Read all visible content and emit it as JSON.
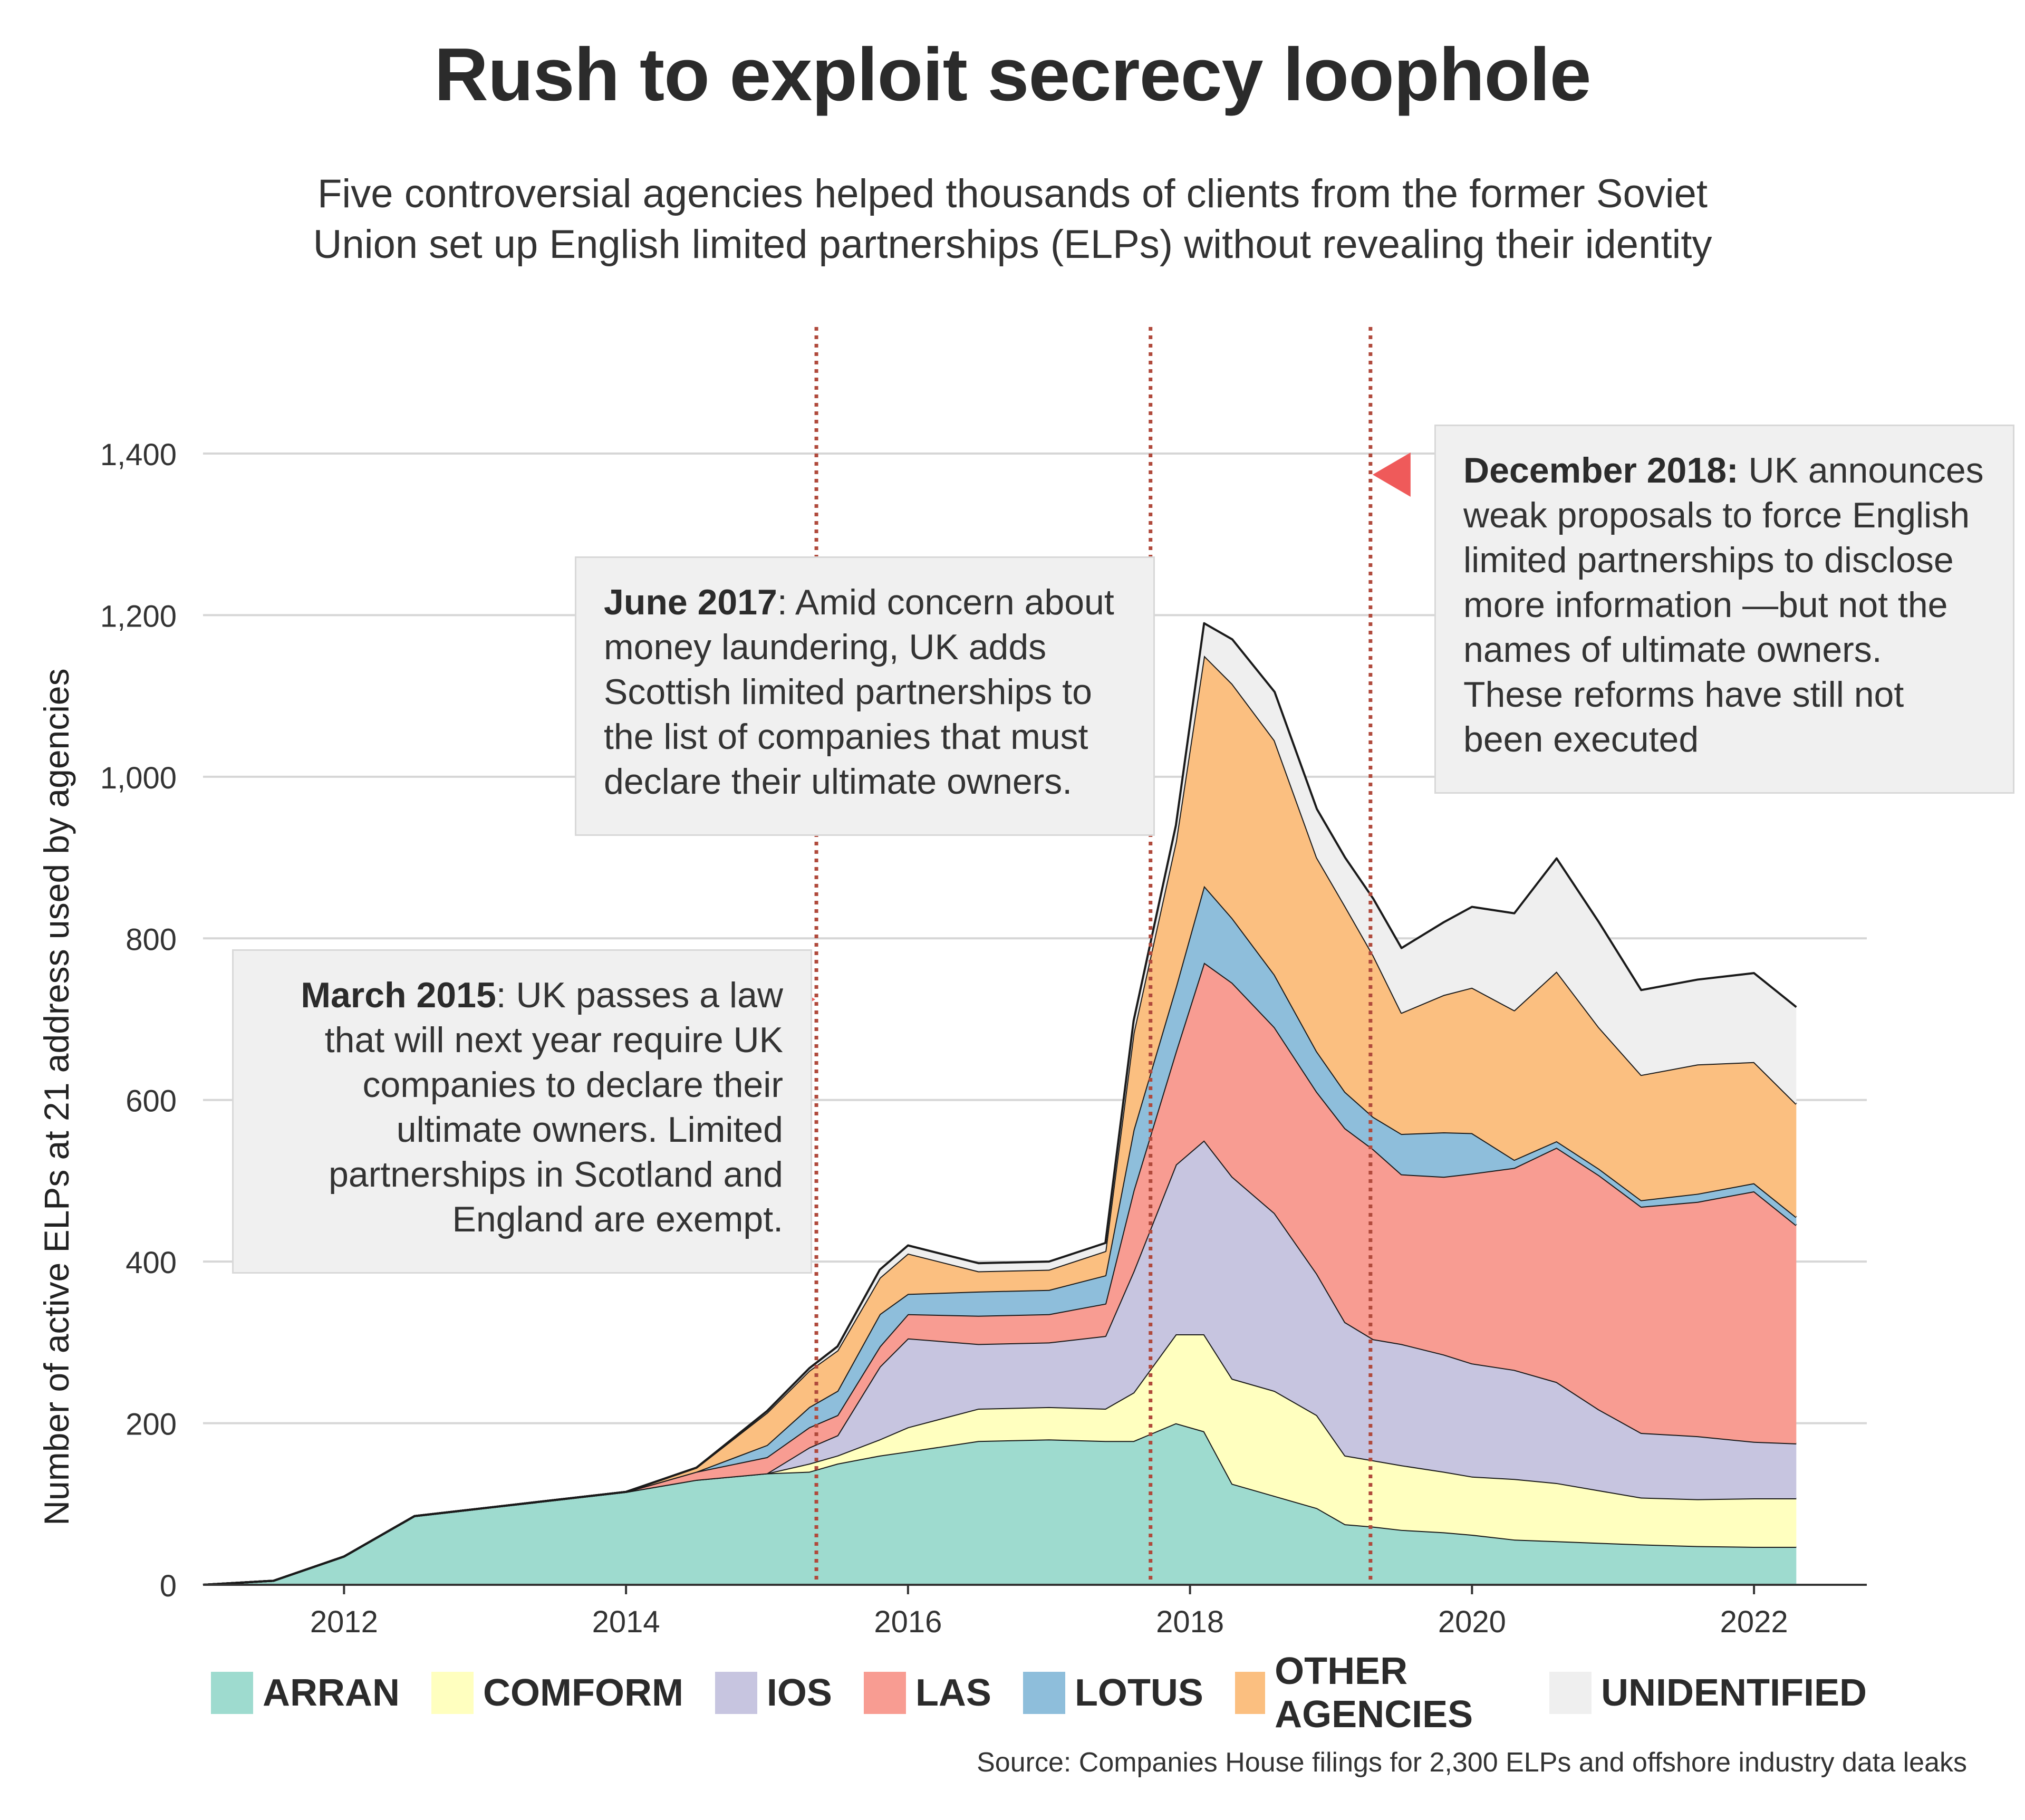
{
  "title": "Rush to exploit secrecy loophole",
  "subtitle": {
    "line1": "Five controversial agencies helped thousands of clients from the former Soviet",
    "line2": "Union set up English limited partnerships (ELPs) without revealing their identity"
  },
  "source": "Source: Companies House filings for 2,300 ELPs and offshore industry data leaks",
  "annotations": {
    "march2015": {
      "bold": "March 2015",
      "text": ": UK passes a law that will next year require UK companies to declare their ultimate owners. Limited partnerships in Scotland and England are exempt."
    },
    "june2017": {
      "bold": "June 2017",
      "text": ": Amid concern about money laundering, UK adds Scottish limited partnerships to the list of companies that must declare their ultimate owners."
    },
    "dec2018": {
      "bold": "December 2018:",
      "text": " UK announces weak proposals to force English limited partnerships to disclose more information —but not the names of ultimate owners. These reforms have still not been executed"
    }
  },
  "chart_data": {
    "type": "area",
    "stacked": true,
    "ylabel": "Number of active ELPs at 21 address used by agencies",
    "xlabel": "",
    "ylim": [
      0,
      1400
    ],
    "xlim": [
      2011.0,
      2022.8
    ],
    "yticks": [
      0,
      200,
      400,
      600,
      800,
      1000,
      1200,
      1400
    ],
    "ytick_labels": [
      "0",
      "200",
      "400",
      "600",
      "800",
      "1,000",
      "1,200",
      "1,400"
    ],
    "xticks": [
      2012,
      2014,
      2016,
      2018,
      2020,
      2022
    ],
    "xtick_labels": [
      "2012",
      "2014",
      "2016",
      "2018",
      "2020",
      "2022"
    ],
    "grid": true,
    "legend_position": "bottom",
    "event_lines": [
      2015.35,
      2017.72,
      2019.28
    ],
    "x": [
      2011.0,
      2011.5,
      2012.0,
      2012.5,
      2013.0,
      2013.5,
      2014.0,
      2014.5,
      2015.0,
      2015.3,
      2015.5,
      2015.8,
      2016.0,
      2016.5,
      2017.0,
      2017.4,
      2017.6,
      2017.9,
      2018.1,
      2018.3,
      2018.6,
      2018.9,
      2019.1,
      2019.3,
      2019.5,
      2019.8,
      2020.0,
      2020.3,
      2020.6,
      2020.9,
      2021.2,
      2021.6,
      2022.0,
      2022.3
    ],
    "series": [
      {
        "name": "ARRAN",
        "color": "#9edbcf",
        "values": [
          0,
          5,
          35,
          85,
          95,
          105,
          115,
          130,
          138,
          140,
          150,
          160,
          165,
          178,
          180,
          178,
          178,
          200,
          190,
          125,
          110,
          95,
          75,
          72,
          68,
          65,
          62,
          56,
          54,
          52,
          50,
          48,
          47,
          47
        ]
      },
      {
        "name": "COMFORM",
        "color": "#ffffbf",
        "values": [
          0,
          0,
          0,
          0,
          0,
          0,
          0,
          0,
          0,
          10,
          10,
          20,
          30,
          40,
          40,
          40,
          60,
          110,
          120,
          130,
          130,
          115,
          85,
          82,
          80,
          75,
          72,
          75,
          72,
          65,
          58,
          58,
          60,
          60
        ]
      },
      {
        "name": "IOS",
        "color": "#c7c5e0",
        "values": [
          0,
          0,
          0,
          0,
          0,
          0,
          0,
          0,
          0,
          20,
          25,
          90,
          110,
          80,
          80,
          90,
          150,
          210,
          240,
          250,
          220,
          175,
          165,
          150,
          150,
          145,
          140,
          135,
          125,
          100,
          80,
          78,
          70,
          68
        ]
      },
      {
        "name": "LAS",
        "color": "#f89c92",
        "values": [
          0,
          0,
          0,
          0,
          0,
          0,
          0,
          10,
          20,
          25,
          25,
          25,
          30,
          35,
          35,
          40,
          100,
          140,
          220,
          240,
          230,
          225,
          240,
          235,
          210,
          220,
          235,
          250,
          290,
          290,
          280,
          290,
          310,
          270
        ]
      },
      {
        "name": "LOTUS",
        "color": "#8ebedb",
        "values": [
          0,
          0,
          0,
          0,
          0,
          0,
          0,
          0,
          15,
          25,
          30,
          40,
          25,
          30,
          30,
          35,
          75,
          80,
          95,
          80,
          65,
          50,
          45,
          40,
          50,
          55,
          50,
          10,
          8,
          8,
          8,
          10,
          10,
          10
        ]
      },
      {
        "name": "OTHER AGENCIES",
        "color": "#fbbf80",
        "values": [
          0,
          0,
          0,
          0,
          0,
          0,
          0,
          5,
          40,
          45,
          50,
          45,
          50,
          25,
          25,
          30,
          120,
          180,
          285,
          290,
          290,
          240,
          230,
          200,
          150,
          170,
          180,
          185,
          210,
          175,
          155,
          160,
          150,
          140
        ]
      },
      {
        "name": "UNIDENTIFIED",
        "color": "#efefef",
        "values": [
          0,
          0,
          0,
          0,
          0,
          0,
          0,
          0,
          2,
          3,
          5,
          10,
          10,
          10,
          10,
          10,
          15,
          20,
          40,
          55,
          60,
          60,
          60,
          70,
          80,
          90,
          100,
          120,
          140,
          130,
          105,
          105,
          110,
          120
        ]
      }
    ]
  }
}
